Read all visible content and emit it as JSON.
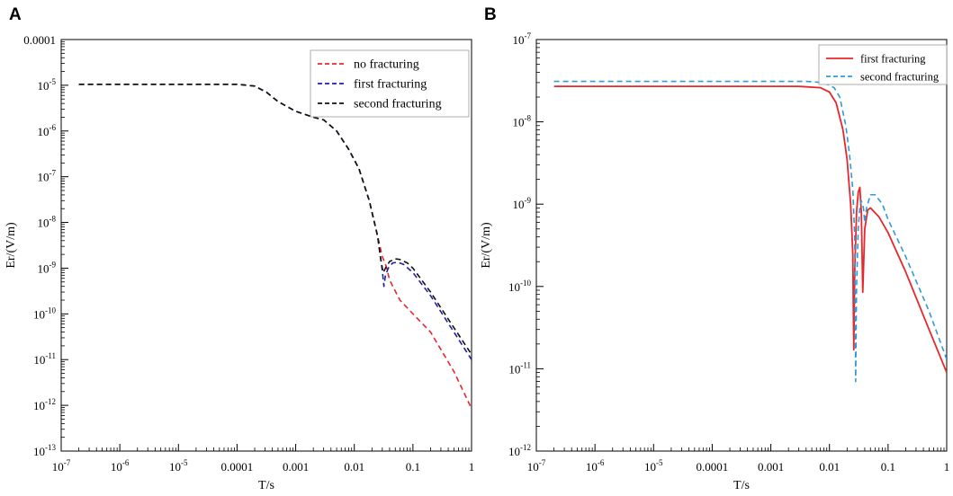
{
  "chart_data": [
    {
      "panel": "A",
      "type": "line",
      "xscale": "log",
      "yscale": "log",
      "xlabel": "T/s",
      "ylabel": "Er/(V/m)",
      "xlim": [
        1e-07,
        1
      ],
      "ylim": [
        1e-13,
        0.0001
      ],
      "x_ticks": [
        {
          "value": 1e-07,
          "label": "10",
          "sup": "-7"
        },
        {
          "value": 1e-06,
          "label": "10",
          "sup": "-6"
        },
        {
          "value": 1e-05,
          "label": "10",
          "sup": "-5"
        },
        {
          "value": 0.0001,
          "label": "0.0001",
          "sup": ""
        },
        {
          "value": 0.001,
          "label": "0.001",
          "sup": ""
        },
        {
          "value": 0.01,
          "label": "0.01",
          "sup": ""
        },
        {
          "value": 0.1,
          "label": "0.1",
          "sup": ""
        },
        {
          "value": 1,
          "label": "1",
          "sup": ""
        }
      ],
      "y_ticks": [
        {
          "value": 0.0001,
          "label": "0.0001",
          "sup": ""
        },
        {
          "value": 1e-05,
          "label": "10",
          "sup": "-5"
        },
        {
          "value": 1e-06,
          "label": "10",
          "sup": "-6"
        },
        {
          "value": 1e-07,
          "label": "10",
          "sup": "-7"
        },
        {
          "value": 1e-08,
          "label": "10",
          "sup": "-8"
        },
        {
          "value": 1e-09,
          "label": "10",
          "sup": "-9"
        },
        {
          "value": 1e-10,
          "label": "10",
          "sup": "-10"
        },
        {
          "value": 1e-11,
          "label": "10",
          "sup": "-11"
        },
        {
          "value": 1e-12,
          "label": "10",
          "sup": "-12"
        },
        {
          "value": 1e-13,
          "label": "10",
          "sup": "-13"
        }
      ],
      "legend_position": "top-right",
      "series": [
        {
          "name": "no fracturing",
          "color": "#e8272b",
          "dash": "dashed",
          "points": [
            [
              2e-07,
              1.05e-05
            ],
            [
              1e-05,
              1.05e-05
            ],
            [
              0.0001,
              1.05e-05
            ],
            [
              0.0002,
              9.6e-06
            ],
            [
              0.00032,
              7e-06
            ],
            [
              0.0005,
              4.4e-06
            ],
            [
              0.001,
              2.7e-06
            ],
            [
              0.002,
              2e-06
            ],
            [
              0.003,
              1.75e-06
            ],
            [
              0.005,
              1e-06
            ],
            [
              0.008,
              4e-07
            ],
            [
              0.012,
              1.5e-07
            ],
            [
              0.018,
              3e-08
            ],
            [
              0.025,
              5e-09
            ],
            [
              0.03,
              1.8e-09
            ],
            [
              0.035,
              1.1e-09
            ],
            [
              0.04,
              5.5e-10
            ],
            [
              0.06,
              2e-10
            ],
            [
              0.1,
              1e-10
            ],
            [
              0.2,
              4e-11
            ],
            [
              0.5,
              5.5e-12
            ],
            [
              1,
              8.5e-13
            ]
          ]
        },
        {
          "name": "first fracturing",
          "color": "#1f1fa8",
          "dash": "dashed",
          "points": [
            [
              2e-07,
              1.05e-05
            ],
            [
              1e-05,
              1.05e-05
            ],
            [
              0.0001,
              1.05e-05
            ],
            [
              0.0002,
              9.6e-06
            ],
            [
              0.00032,
              7e-06
            ],
            [
              0.0005,
              4.4e-06
            ],
            [
              0.001,
              2.7e-06
            ],
            [
              0.002,
              2e-06
            ],
            [
              0.003,
              1.75e-06
            ],
            [
              0.005,
              1e-06
            ],
            [
              0.008,
              4e-07
            ],
            [
              0.012,
              1.5e-07
            ],
            [
              0.018,
              3e-08
            ],
            [
              0.025,
              5e-09
            ],
            [
              0.028,
              1.7e-09
            ],
            [
              0.03,
              9e-10
            ],
            [
              0.032,
              4e-10
            ],
            [
              0.034,
              7e-10
            ],
            [
              0.038,
              1e-09
            ],
            [
              0.045,
              1.3e-09
            ],
            [
              0.055,
              1.35e-09
            ],
            [
              0.07,
              1.2e-09
            ],
            [
              0.1,
              8e-10
            ],
            [
              0.2,
              2.5e-10
            ],
            [
              0.5,
              4e-11
            ],
            [
              1,
              1e-11
            ]
          ]
        },
        {
          "name": "second fracturing",
          "color": "#111111",
          "dash": "dashed",
          "points": [
            [
              2e-07,
              1.05e-05
            ],
            [
              1e-05,
              1.05e-05
            ],
            [
              0.0001,
              1.05e-05
            ],
            [
              0.0002,
              9.6e-06
            ],
            [
              0.00032,
              7e-06
            ],
            [
              0.0005,
              4.4e-06
            ],
            [
              0.001,
              2.7e-06
            ],
            [
              0.002,
              2e-06
            ],
            [
              0.003,
              1.75e-06
            ],
            [
              0.005,
              1e-06
            ],
            [
              0.008,
              4e-07
            ],
            [
              0.012,
              1.5e-07
            ],
            [
              0.018,
              3e-08
            ],
            [
              0.025,
              5e-09
            ],
            [
              0.028,
              1.7e-09
            ],
            [
              0.031,
              8e-10
            ],
            [
              0.034,
              1e-09
            ],
            [
              0.04,
              1.4e-09
            ],
            [
              0.05,
              1.6e-09
            ],
            [
              0.06,
              1.55e-09
            ],
            [
              0.08,
              1.3e-09
            ],
            [
              0.1,
              1e-09
            ],
            [
              0.2,
              3e-10
            ],
            [
              0.5,
              5e-11
            ],
            [
              1,
              1.3e-11
            ]
          ]
        }
      ]
    },
    {
      "panel": "B",
      "type": "line",
      "xscale": "log",
      "yscale": "log",
      "xlabel": "T/s",
      "ylabel": "Er/(V/m)",
      "xlim": [
        1e-07,
        1
      ],
      "ylim": [
        1e-12,
        1e-07
      ],
      "x_ticks": [
        {
          "value": 1e-07,
          "label": "10",
          "sup": "-7"
        },
        {
          "value": 1e-06,
          "label": "10",
          "sup": "-6"
        },
        {
          "value": 1e-05,
          "label": "10",
          "sup": "-5"
        },
        {
          "value": 0.0001,
          "label": "0.0001",
          "sup": ""
        },
        {
          "value": 0.001,
          "label": "0.001",
          "sup": ""
        },
        {
          "value": 0.01,
          "label": "0.01",
          "sup": ""
        },
        {
          "value": 0.1,
          "label": "0.1",
          "sup": ""
        },
        {
          "value": 1,
          "label": "1",
          "sup": ""
        }
      ],
      "y_ticks": [
        {
          "value": 1e-07,
          "label": "10",
          "sup": "-7"
        },
        {
          "value": 1e-08,
          "label": "10",
          "sup": "-8"
        },
        {
          "value": 1e-09,
          "label": "10",
          "sup": "-9"
        },
        {
          "value": 1e-10,
          "label": "10",
          "sup": "-10"
        },
        {
          "value": 1e-11,
          "label": "10",
          "sup": "-11"
        },
        {
          "value": 1e-12,
          "label": "10",
          "sup": "-12"
        }
      ],
      "legend_position": "top-right",
      "series": [
        {
          "name": "first fracturing",
          "color": "#e8272b",
          "dash": "solid",
          "points": [
            [
              2e-07,
              2.7e-08
            ],
            [
              0.0001,
              2.7e-08
            ],
            [
              0.003,
              2.7e-08
            ],
            [
              0.007,
              2.6e-08
            ],
            [
              0.01,
              2.3e-08
            ],
            [
              0.013,
              1.7e-08
            ],
            [
              0.017,
              8e-09
            ],
            [
              0.02,
              3.5e-09
            ],
            [
              0.023,
              1e-09
            ],
            [
              0.025,
              2.5e-10
            ],
            [
              0.026,
              1.7e-11
            ],
            [
              0.027,
              1.5e-10
            ],
            [
              0.029,
              8e-10
            ],
            [
              0.031,
              1.4e-09
            ],
            [
              0.033,
              1.6e-09
            ],
            [
              0.035,
              8e-10
            ],
            [
              0.037,
              8.5e-11
            ],
            [
              0.04,
              5e-10
            ],
            [
              0.045,
              8.5e-10
            ],
            [
              0.05,
              9e-10
            ],
            [
              0.07,
              7e-10
            ],
            [
              0.1,
              4.5e-10
            ],
            [
              0.2,
              1.5e-10
            ],
            [
              0.5,
              3e-11
            ],
            [
              1,
              9e-12
            ]
          ]
        },
        {
          "name": "second fracturing",
          "color": "#2e9bd8",
          "dash": "dashed",
          "points": [
            [
              2e-07,
              3.1e-08
            ],
            [
              0.0001,
              3.1e-08
            ],
            [
              0.004,
              3.1e-08
            ],
            [
              0.008,
              3e-08
            ],
            [
              0.012,
              2.6e-08
            ],
            [
              0.015,
              2e-08
            ],
            [
              0.019,
              9e-09
            ],
            [
              0.022,
              4e-09
            ],
            [
              0.025,
              1.5e-09
            ],
            [
              0.027,
              4e-10
            ],
            [
              0.028,
              7e-12
            ],
            [
              0.029,
              1e-10
            ],
            [
              0.031,
              5e-10
            ],
            [
              0.033,
              9e-10
            ],
            [
              0.035,
              1.1e-09
            ],
            [
              0.038,
              9e-10
            ],
            [
              0.04,
              6e-10
            ],
            [
              0.043,
              9e-10
            ],
            [
              0.05,
              1.3e-09
            ],
            [
              0.06,
              1.3e-09
            ],
            [
              0.08,
              1e-09
            ],
            [
              0.1,
              6.5e-10
            ],
            [
              0.2,
              2.3e-10
            ],
            [
              0.5,
              5e-11
            ],
            [
              1,
              1.3e-11
            ]
          ]
        }
      ]
    }
  ]
}
